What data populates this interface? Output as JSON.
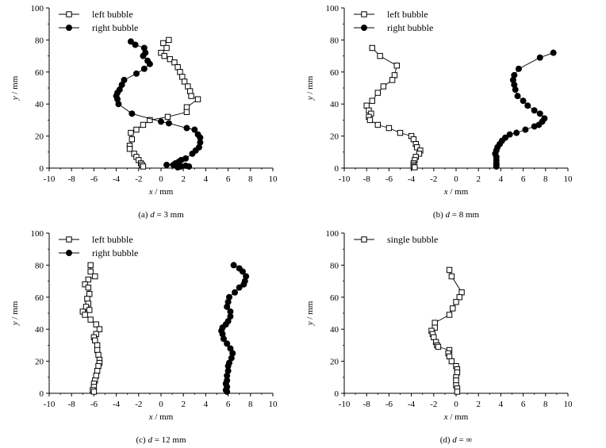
{
  "chart_data": [
    {
      "type": "scatter",
      "caption_prefix": "(a) ",
      "caption_var": "d",
      "caption_suffix": " = 3 mm",
      "xlabel_var": "x",
      "xlabel_unit": " / mm",
      "ylabel_var": "y",
      "ylabel_unit": " / mm",
      "xlim": [
        -10,
        10
      ],
      "ylim": [
        0,
        100
      ],
      "xticks": [
        -10,
        -8,
        -6,
        -4,
        -2,
        0,
        2,
        4,
        6,
        8,
        10
      ],
      "yticks": [
        0,
        20,
        40,
        60,
        80,
        100
      ],
      "legend_position": "top-left",
      "series": [
        {
          "name": "left bubble",
          "marker": "open-square",
          "points": [
            [
              0.7,
              80
            ],
            [
              0.2,
              78
            ],
            [
              0.5,
              75
            ],
            [
              0.0,
              72
            ],
            [
              0.3,
              70
            ],
            [
              0.8,
              68
            ],
            [
              1.2,
              66
            ],
            [
              1.5,
              63
            ],
            [
              1.7,
              60
            ],
            [
              1.9,
              57
            ],
            [
              2.1,
              54
            ],
            [
              2.4,
              51
            ],
            [
              2.6,
              48
            ],
            [
              2.7,
              45
            ],
            [
              3.3,
              43
            ],
            [
              2.3,
              38
            ],
            [
              2.3,
              35
            ],
            [
              0.6,
              32
            ],
            [
              -1.0,
              30
            ],
            [
              -1.6,
              27
            ],
            [
              -2.2,
              24
            ],
            [
              -2.7,
              22
            ],
            [
              -2.6,
              18
            ],
            [
              -2.8,
              14
            ],
            [
              -2.8,
              12
            ],
            [
              -2.4,
              9
            ],
            [
              -2.2,
              7
            ],
            [
              -2.0,
              5
            ],
            [
              -1.8,
              3
            ],
            [
              -1.7,
              2
            ],
            [
              -1.6,
              1
            ]
          ]
        },
        {
          "name": "right bubble",
          "marker": "filled-circle",
          "points": [
            [
              -2.7,
              79
            ],
            [
              -2.3,
              77
            ],
            [
              -1.5,
              75
            ],
            [
              -1.4,
              72
            ],
            [
              -1.6,
              70
            ],
            [
              -1.2,
              67
            ],
            [
              -1.0,
              65
            ],
            [
              -1.5,
              62
            ],
            [
              -2.2,
              59
            ],
            [
              -3.3,
              55
            ],
            [
              -3.5,
              52
            ],
            [
              -3.7,
              49
            ],
            [
              -3.9,
              47
            ],
            [
              -4.0,
              45
            ],
            [
              -3.9,
              43
            ],
            [
              -3.8,
              40
            ],
            [
              -2.6,
              34
            ],
            [
              0.0,
              29
            ],
            [
              0.7,
              28
            ],
            [
              2.3,
              25
            ],
            [
              3.0,
              24
            ],
            [
              3.3,
              21
            ],
            [
              3.5,
              19
            ],
            [
              3.5,
              16
            ],
            [
              3.4,
              13
            ],
            [
              3.1,
              11
            ],
            [
              2.8,
              9
            ],
            [
              2.2,
              6
            ],
            [
              1.8,
              5
            ],
            [
              1.6,
              4
            ],
            [
              1.3,
              3
            ],
            [
              0.5,
              2
            ],
            [
              1.1,
              2
            ],
            [
              2.2,
              1.5
            ],
            [
              2.5,
              1
            ],
            [
              1.8,
              1
            ],
            [
              1.5,
              0.5
            ]
          ]
        }
      ]
    },
    {
      "type": "scatter",
      "caption_prefix": "(b) ",
      "caption_var": "d",
      "caption_suffix": " = 8 mm",
      "xlabel_var": "x",
      "xlabel_unit": " / mm",
      "ylabel_var": "y",
      "ylabel_unit": " / mm",
      "xlim": [
        -10,
        10
      ],
      "ylim": [
        0,
        100
      ],
      "xticks": [
        -10,
        -8,
        -6,
        -4,
        -2,
        0,
        2,
        4,
        6,
        8,
        10
      ],
      "yticks": [
        0,
        20,
        40,
        60,
        80,
        100
      ],
      "legend_position": "top-left",
      "series": [
        {
          "name": "left bubble",
          "marker": "open-square",
          "points": [
            [
              -7.5,
              75
            ],
            [
              -6.8,
              70
            ],
            [
              -5.3,
              64
            ],
            [
              -5.5,
              58
            ],
            [
              -5.7,
              55
            ],
            [
              -6.5,
              51
            ],
            [
              -7.0,
              47
            ],
            [
              -7.5,
              42
            ],
            [
              -8.0,
              39
            ],
            [
              -7.8,
              36
            ],
            [
              -7.6,
              34
            ],
            [
              -7.8,
              32
            ],
            [
              -7.7,
              30
            ],
            [
              -7.0,
              27
            ],
            [
              -6.0,
              25
            ],
            [
              -5.0,
              22
            ],
            [
              -4.0,
              20
            ],
            [
              -3.8,
              18
            ],
            [
              -3.6,
              15
            ],
            [
              -3.5,
              13
            ],
            [
              -3.2,
              11
            ],
            [
              -3.3,
              9
            ],
            [
              -3.6,
              7
            ],
            [
              -3.7,
              5
            ],
            [
              -3.8,
              3
            ],
            [
              -3.8,
              2
            ],
            [
              -3.8,
              1
            ],
            [
              -3.7,
              0.5
            ]
          ]
        },
        {
          "name": "right bubble",
          "marker": "filled-circle",
          "points": [
            [
              8.7,
              72
            ],
            [
              7.5,
              69
            ],
            [
              5.6,
              62
            ],
            [
              5.2,
              58
            ],
            [
              5.1,
              55
            ],
            [
              5.2,
              52
            ],
            [
              5.3,
              49
            ],
            [
              5.5,
              45
            ],
            [
              6.0,
              42
            ],
            [
              6.4,
              39
            ],
            [
              7.0,
              36
            ],
            [
              7.5,
              34
            ],
            [
              7.9,
              31
            ],
            [
              7.7,
              29
            ],
            [
              7.4,
              27
            ],
            [
              7.0,
              26
            ],
            [
              6.2,
              24
            ],
            [
              5.4,
              22
            ],
            [
              4.8,
              21
            ],
            [
              4.4,
              19
            ],
            [
              4.1,
              17
            ],
            [
              3.9,
              15
            ],
            [
              3.7,
              13
            ],
            [
              3.6,
              11
            ],
            [
              3.5,
              9
            ],
            [
              3.6,
              7
            ],
            [
              3.6,
              5
            ],
            [
              3.6,
              3
            ],
            [
              3.6,
              2
            ],
            [
              3.6,
              1
            ]
          ]
        }
      ]
    },
    {
      "type": "scatter",
      "caption_prefix": "(c) ",
      "caption_var": "d",
      "caption_suffix": " = 12 mm",
      "xlabel_var": "x",
      "xlabel_unit": " / mm",
      "ylabel_var": "y",
      "ylabel_unit": " / mm",
      "xlim": [
        -10,
        10
      ],
      "ylim": [
        0,
        100
      ],
      "xticks": [
        -10,
        -8,
        -6,
        -4,
        -2,
        0,
        2,
        4,
        6,
        8,
        10
      ],
      "yticks": [
        0,
        20,
        40,
        60,
        80,
        100
      ],
      "legend_position": "top-left",
      "series": [
        {
          "name": "left bubble",
          "marker": "open-square",
          "points": [
            [
              -6.3,
              80
            ],
            [
              -6.3,
              76
            ],
            [
              -5.9,
              73
            ],
            [
              -6.5,
              71
            ],
            [
              -6.8,
              68
            ],
            [
              -6.5,
              66
            ],
            [
              -6.4,
              62
            ],
            [
              -6.6,
              59
            ],
            [
              -6.5,
              56
            ],
            [
              -6.7,
              54
            ],
            [
              -6.4,
              52
            ],
            [
              -7.0,
              51
            ],
            [
              -6.8,
              49
            ],
            [
              -6.3,
              46
            ],
            [
              -5.8,
              43
            ],
            [
              -5.5,
              40
            ],
            [
              -5.8,
              37
            ],
            [
              -6.0,
              35
            ],
            [
              -5.9,
              33
            ],
            [
              -5.7,
              30
            ],
            [
              -5.7,
              27
            ],
            [
              -5.6,
              24
            ],
            [
              -5.5,
              21
            ],
            [
              -5.5,
              19
            ],
            [
              -5.6,
              17
            ],
            [
              -5.7,
              14
            ],
            [
              -5.8,
              11
            ],
            [
              -5.9,
              8
            ],
            [
              -6.0,
              6
            ],
            [
              -6.0,
              4
            ],
            [
              -6.1,
              2
            ],
            [
              -6.0,
              1
            ]
          ]
        },
        {
          "name": "right bubble",
          "marker": "filled-circle",
          "points": [
            [
              6.5,
              80
            ],
            [
              7.0,
              78
            ],
            [
              7.3,
              76
            ],
            [
              7.6,
              73
            ],
            [
              7.5,
              70
            ],
            [
              7.4,
              68
            ],
            [
              7.0,
              66
            ],
            [
              6.6,
              63
            ],
            [
              6.1,
              60
            ],
            [
              6.0,
              57
            ],
            [
              5.9,
              54
            ],
            [
              6.2,
              51
            ],
            [
              6.2,
              48
            ],
            [
              6.0,
              45
            ],
            [
              5.8,
              43
            ],
            [
              5.5,
              41
            ],
            [
              5.4,
              39
            ],
            [
              5.5,
              37
            ],
            [
              5.6,
              34
            ],
            [
              5.9,
              31
            ],
            [
              6.2,
              28
            ],
            [
              6.4,
              25
            ],
            [
              6.3,
              22
            ],
            [
              6.1,
              19
            ],
            [
              6.0,
              17
            ],
            [
              6.0,
              14
            ],
            [
              5.9,
              11
            ],
            [
              5.9,
              8
            ],
            [
              5.8,
              6
            ],
            [
              5.9,
              4
            ],
            [
              5.8,
              2
            ],
            [
              5.9,
              1
            ]
          ]
        }
      ]
    },
    {
      "type": "scatter",
      "caption_prefix": "(d) ",
      "caption_var": "d",
      "caption_suffix": " = ∞",
      "xlabel_var": "x",
      "xlabel_unit": " / mm",
      "ylabel_var": "y",
      "ylabel_unit": " / mm",
      "xlim": [
        -10,
        10
      ],
      "ylim": [
        0,
        100
      ],
      "xticks": [
        -10,
        -8,
        -6,
        -4,
        -2,
        0,
        2,
        4,
        6,
        8,
        10
      ],
      "yticks": [
        0,
        20,
        40,
        60,
        80,
        100
      ],
      "legend_position": "top-left",
      "series": [
        {
          "name": "single bubble",
          "marker": "open-square",
          "points": [
            [
              -0.6,
              77
            ],
            [
              -0.4,
              73
            ],
            [
              0.5,
              63
            ],
            [
              0.3,
              60
            ],
            [
              0.0,
              57
            ],
            [
              -0.3,
              53
            ],
            [
              -0.6,
              49
            ],
            [
              -1.9,
              44
            ],
            [
              -1.9,
              41
            ],
            [
              -2.2,
              39
            ],
            [
              -2.1,
              37
            ],
            [
              -2.0,
              35
            ],
            [
              -1.8,
              32
            ],
            [
              -1.7,
              30
            ],
            [
              -1.6,
              29
            ],
            [
              -0.6,
              27
            ],
            [
              -0.7,
              25
            ],
            [
              -0.6,
              23
            ],
            [
              -0.4,
              20
            ],
            [
              0.0,
              17
            ],
            [
              0.1,
              15
            ],
            [
              0.1,
              13
            ],
            [
              0.0,
              10
            ],
            [
              0.0,
              8
            ],
            [
              0.0,
              5
            ],
            [
              0.1,
              3
            ],
            [
              0.1,
              1
            ]
          ]
        }
      ]
    }
  ]
}
